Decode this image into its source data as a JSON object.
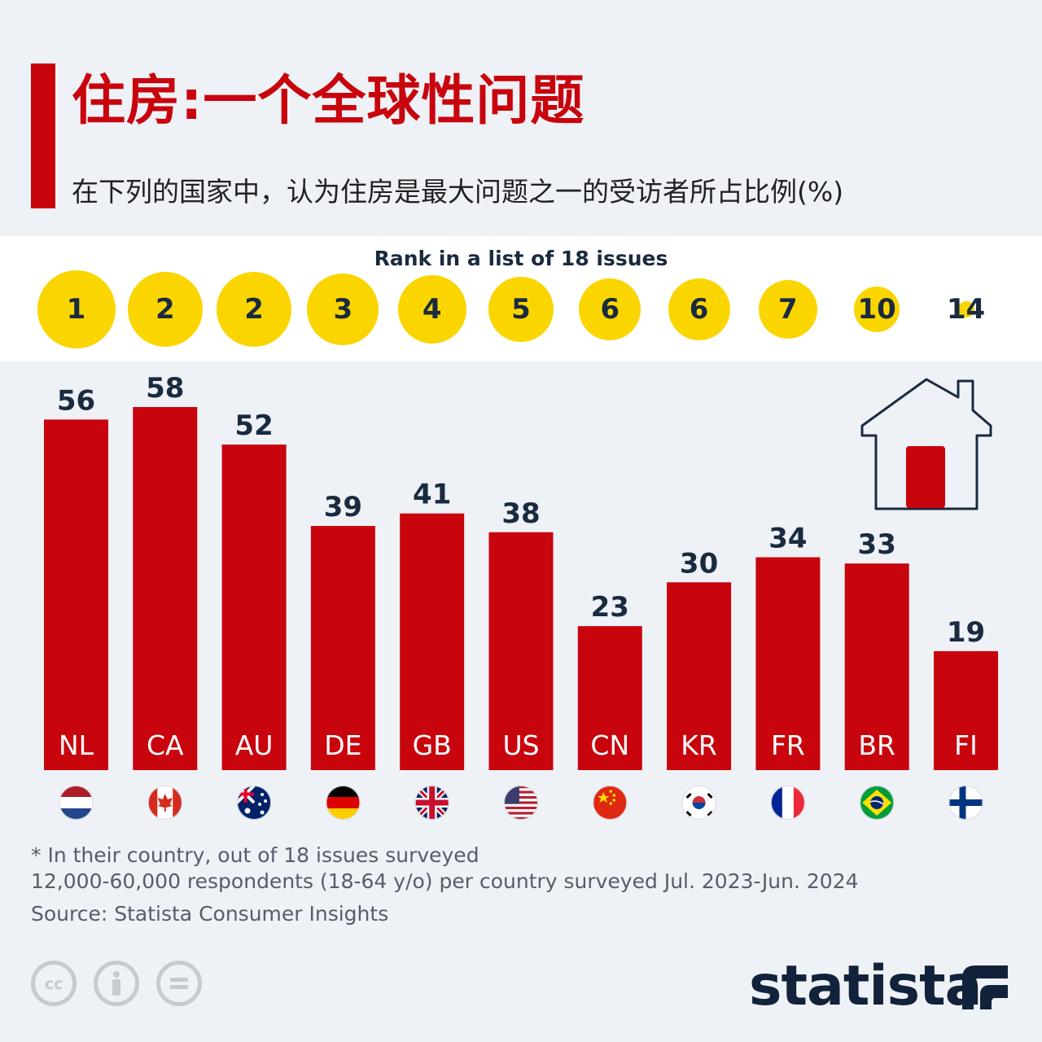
{
  "title": "住房:一个全球性问题",
  "subtitle": "在下列的国家中，认为住房是最大问题之一的受访者所占比例(%)",
  "rank_title": "Rank in a list of 18 issues",
  "colors": {
    "bar": "#c8040d",
    "rank_circle": "#fbd500",
    "text_dark": "#1a2a3f",
    "background": "#eef1f6"
  },
  "chart_data": {
    "type": "bar",
    "categories": [
      "NL",
      "CA",
      "AU",
      "DE",
      "GB",
      "US",
      "CN",
      "KR",
      "FR",
      "BR",
      "FI"
    ],
    "values": [
      56,
      58,
      52,
      39,
      41,
      38,
      23,
      30,
      34,
      33,
      19
    ],
    "ranks": [
      "1",
      "2",
      "2",
      "3",
      "4",
      "5",
      "6",
      "6",
      "7",
      "10",
      "14"
    ],
    "ylim": [
      0,
      58
    ],
    "grid": false
  },
  "flags": [
    "netherlands-flag",
    "canada-flag",
    "australia-flag",
    "germany-flag",
    "uk-flag",
    "usa-flag",
    "china-flag",
    "south-korea-flag",
    "france-flag",
    "brazil-flag",
    "finland-flag"
  ],
  "footnotes": {
    "line1": "* In their country, out of 18 issues surveyed",
    "line2": "12,000-60,000 respondents (18-64 y/o) per country surveyed Jul. 2023-Jun. 2024",
    "source": "Source: Statista Consumer Insights"
  },
  "logo": {
    "text": "statista"
  },
  "icons": [
    "house-icon",
    "creative-commons-icon",
    "attribution-icon",
    "no-derivatives-icon",
    "statista-logo-icon"
  ]
}
